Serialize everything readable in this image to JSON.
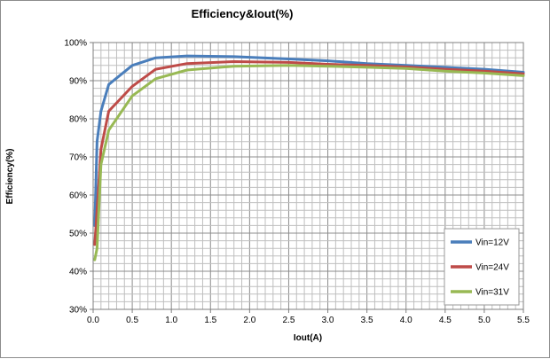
{
  "chart_data": {
    "type": "line",
    "title": "Efficiency&Iout(%)",
    "xlabel": "Iout(A)",
    "ylabel": "Efficiency(%)",
    "xlim": [
      0,
      5.5
    ],
    "ylim": [
      30,
      100
    ],
    "x_ticks": [
      "0.0",
      "0.5",
      "1.0",
      "1.5",
      "2.0",
      "2.5",
      "3.0",
      "3.5",
      "4.0",
      "4.5",
      "5.0",
      "5.5"
    ],
    "y_ticks": [
      "30%",
      "40%",
      "50%",
      "60%",
      "70%",
      "80%",
      "90%",
      "100%"
    ],
    "grid": true,
    "legend_position": "right",
    "series": [
      {
        "name": "Vin=12V",
        "color": "#4a7ebb",
        "points": [
          [
            0.02,
            52
          ],
          [
            0.05,
            74
          ],
          [
            0.1,
            82
          ],
          [
            0.2,
            89
          ],
          [
            0.5,
            94
          ],
          [
            0.8,
            96
          ],
          [
            1.2,
            96.5
          ],
          [
            1.8,
            96.3
          ],
          [
            2.5,
            95.7
          ],
          [
            3.0,
            95.2
          ],
          [
            3.5,
            94.5
          ],
          [
            4.0,
            94
          ],
          [
            4.5,
            93.5
          ],
          [
            5.0,
            93
          ],
          [
            5.5,
            92.2
          ]
        ]
      },
      {
        "name": "Vin=24V",
        "color": "#be4b48",
        "points": [
          [
            0.02,
            47
          ],
          [
            0.05,
            56
          ],
          [
            0.1,
            72
          ],
          [
            0.2,
            82
          ],
          [
            0.5,
            88.5
          ],
          [
            0.8,
            93
          ],
          [
            1.2,
            94.5
          ],
          [
            1.8,
            95
          ],
          [
            2.5,
            94.8
          ],
          [
            3.0,
            94.3
          ],
          [
            3.5,
            94
          ],
          [
            4.0,
            93.6
          ],
          [
            4.5,
            93
          ],
          [
            5.0,
            92.5
          ],
          [
            5.5,
            91.8
          ]
        ]
      },
      {
        "name": "Vin=31V",
        "color": "#98b954",
        "points": [
          [
            0.02,
            43
          ],
          [
            0.05,
            46
          ],
          [
            0.1,
            68
          ],
          [
            0.2,
            77
          ],
          [
            0.5,
            86
          ],
          [
            0.8,
            90.5
          ],
          [
            1.2,
            92.8
          ],
          [
            1.8,
            93.8
          ],
          [
            2.5,
            94
          ],
          [
            3.0,
            93.8
          ],
          [
            3.5,
            93.5
          ],
          [
            4.0,
            93.2
          ],
          [
            4.5,
            92.5
          ],
          [
            5.0,
            92
          ],
          [
            5.5,
            91.3
          ]
        ]
      }
    ]
  }
}
